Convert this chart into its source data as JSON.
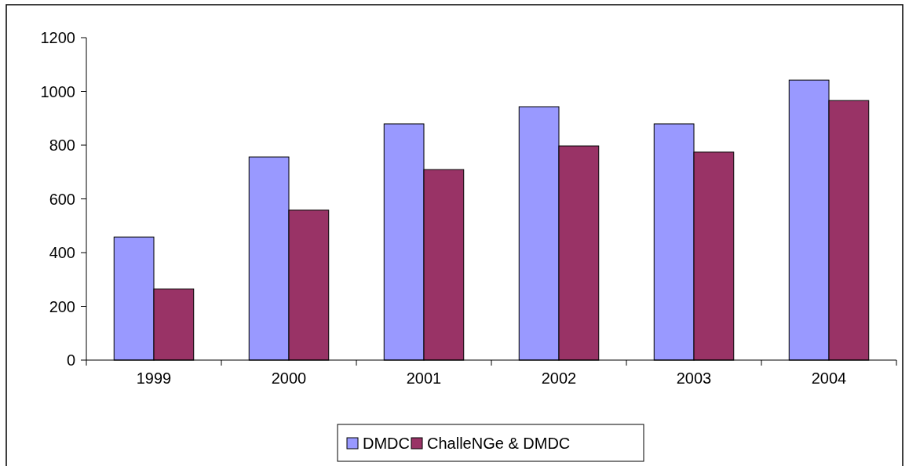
{
  "chart_data": {
    "type": "bar",
    "categories": [
      "1999",
      "2000",
      "2001",
      "2002",
      "2003",
      "2004"
    ],
    "series": [
      {
        "name": "DMDC",
        "color": "#9999ff",
        "values": [
          458,
          756,
          879,
          943,
          879,
          1042
        ]
      },
      {
        "name": "ChalleNGe & DMDC",
        "color": "#993366",
        "values": [
          265,
          558,
          709,
          797,
          774,
          966
        ]
      }
    ],
    "ylim": [
      0,
      1200
    ],
    "yticks": [
      0,
      200,
      400,
      600,
      800,
      1000,
      1200
    ],
    "grid": false,
    "legend": "bottom"
  }
}
